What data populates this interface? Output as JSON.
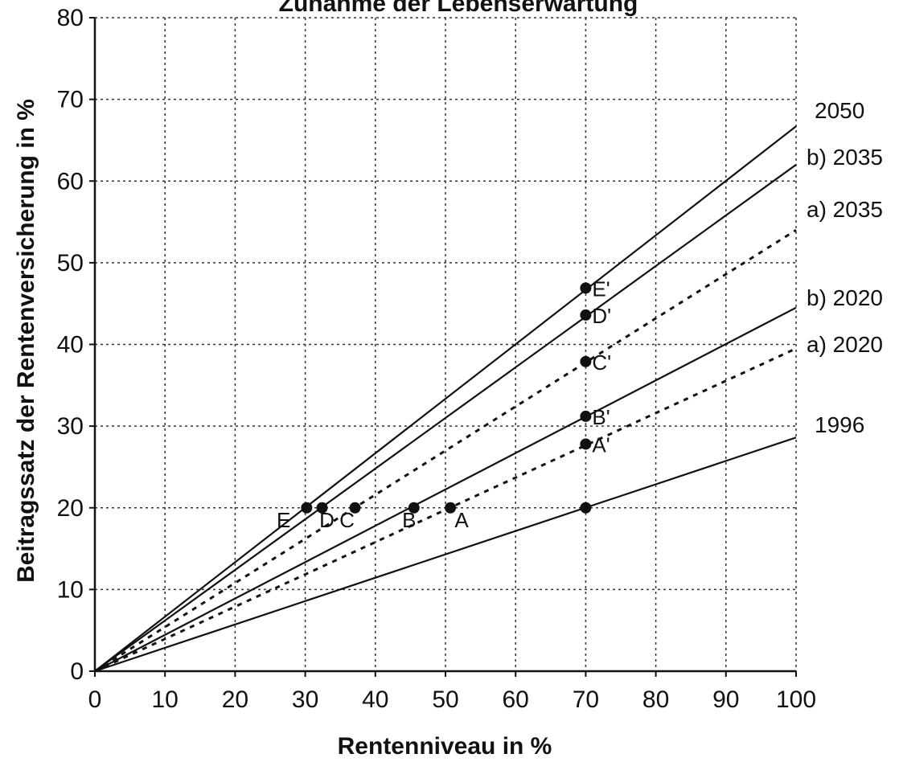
{
  "chart_data": {
    "type": "line",
    "title": "Zunahme der Lebenserwartung",
    "xlabel": "Rentenniveau in %",
    "ylabel": "Beitragssatz der Rentenversicherung in %",
    "xlim": [
      0,
      100
    ],
    "ylim": [
      0,
      80
    ],
    "x_ticks": [
      "0",
      "10",
      "20",
      "30",
      "40",
      "50",
      "60",
      "70",
      "80",
      "90",
      "100"
    ],
    "y_ticks": [
      "0",
      "10",
      "20",
      "30",
      "40",
      "50",
      "60",
      "70",
      "80"
    ],
    "grid": true,
    "series": [
      {
        "name": "2050",
        "style": "solid",
        "x": [
          0,
          100
        ],
        "y": [
          0,
          66.7
        ]
      },
      {
        "name": "b) 2035",
        "style": "solid",
        "x": [
          0,
          100
        ],
        "y": [
          0,
          62
        ]
      },
      {
        "name": "a) 2035",
        "style": "dotted",
        "x": [
          0,
          100
        ],
        "y": [
          0,
          54
        ]
      },
      {
        "name": "b) 2020",
        "style": "solid",
        "x": [
          0,
          100
        ],
        "y": [
          0,
          44.5
        ]
      },
      {
        "name": "a) 2020",
        "style": "dotted",
        "x": [
          0,
          100
        ],
        "y": [
          0,
          39.5
        ]
      },
      {
        "name": "1996",
        "style": "solid",
        "x": [
          0,
          100
        ],
        "y": [
          0,
          28.6
        ]
      }
    ],
    "points": [
      {
        "label": "E",
        "x": 30.2,
        "y": 20
      },
      {
        "label": "D",
        "x": 32.4,
        "y": 20
      },
      {
        "label": "C",
        "x": 37.1,
        "y": 20
      },
      {
        "label": "B",
        "x": 45.5,
        "y": 20
      },
      {
        "label": "A",
        "x": 50.7,
        "y": 20
      },
      {
        "label": "",
        "x": 70,
        "y": 20
      },
      {
        "label": "A'",
        "x": 70,
        "y": 27.8
      },
      {
        "label": "B'",
        "x": 70,
        "y": 31.2
      },
      {
        "label": "C'",
        "x": 70,
        "y": 37.9
      },
      {
        "label": "D'",
        "x": 70,
        "y": 43.6
      },
      {
        "label": "E'",
        "x": 70,
        "y": 46.9
      }
    ],
    "colors": {
      "line": "#111111",
      "grid": "#333333",
      "background": "#ffffff"
    }
  }
}
